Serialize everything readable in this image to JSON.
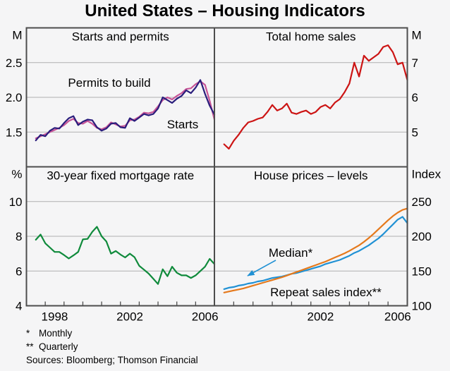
{
  "title": "United States – Housing Indicators",
  "footnotes": [
    {
      "marker": "*",
      "text": "Monthly"
    },
    {
      "marker": "**",
      "text": "Quarterly"
    },
    {
      "marker": "",
      "text": "Sources: Bloomberg; Thomson Financial"
    }
  ],
  "colors": {
    "background": "#f5f5f6",
    "frame": "#4d4d4d",
    "grid": "#b0b0b0",
    "text": "#000000",
    "starts": "#2a1d7c",
    "permits": "#c75497",
    "sales": "#cc1414",
    "mortgage": "#0f8a3b",
    "median": "#2091d4",
    "repeat_sales": "#e5791c"
  },
  "chart_data": {
    "type": "line",
    "layout_hint": "2x2 panel chart, shared frame, gridlines on, ticks on bottom axis only, unit labels at top of y axes",
    "x_quarterly": [
      1997.0,
      1997.25,
      1997.5,
      1997.75,
      1998.0,
      1998.25,
      1998.5,
      1998.75,
      1999.0,
      1999.25,
      1999.5,
      1999.75,
      2000.0,
      2000.25,
      2000.5,
      2000.75,
      2001.0,
      2001.25,
      2001.5,
      2001.75,
      2002.0,
      2002.25,
      2002.5,
      2002.75,
      2003.0,
      2003.25,
      2003.5,
      2003.75,
      2004.0,
      2004.25,
      2004.5,
      2004.75,
      2005.0,
      2005.25,
      2005.5,
      2005.75,
      2006.0,
      2006.25,
      2006.5
    ],
    "xlim": [
      1996.5,
      2006.5
    ],
    "xticks": [
      1997.5,
      1998.5,
      1999.5,
      2000.5,
      2001.5,
      2002.5,
      2003.5,
      2004.5,
      2005.5,
      2006.5
    ],
    "panels": [
      {
        "id": "starts-permits",
        "title": "Starts and permits",
        "unit": "M",
        "unit_side": "left",
        "ylim": [
          1.0,
          3.0
        ],
        "yticks": [
          {
            "v": 1.5,
            "label": "1.5"
          },
          {
            "v": 2.0,
            "label": "2.0"
          },
          {
            "v": 2.5,
            "label": "2.5"
          }
        ],
        "xlabels": [],
        "series": [
          {
            "id": "permits",
            "label": "Permits to build",
            "color": "#c75497",
            "values": [
              1.41,
              1.44,
              1.47,
              1.5,
              1.53,
              1.56,
              1.6,
              1.66,
              1.69,
              1.63,
              1.62,
              1.66,
              1.62,
              1.56,
              1.54,
              1.57,
              1.64,
              1.61,
              1.58,
              1.59,
              1.67,
              1.68,
              1.72,
              1.78,
              1.77,
              1.79,
              1.87,
              1.96,
              2.0,
              1.97,
              2.02,
              2.06,
              2.12,
              2.13,
              2.19,
              2.23,
              2.18,
              1.95,
              1.68
            ]
          },
          {
            "id": "starts",
            "label": "Starts",
            "color": "#2a1d7c",
            "values": [
              1.38,
              1.46,
              1.44,
              1.52,
              1.56,
              1.55,
              1.63,
              1.7,
              1.73,
              1.6,
              1.65,
              1.68,
              1.67,
              1.57,
              1.52,
              1.55,
              1.62,
              1.63,
              1.57,
              1.56,
              1.7,
              1.66,
              1.71,
              1.76,
              1.74,
              1.76,
              1.84,
              2.0,
              1.96,
              1.92,
              1.98,
              2.02,
              2.1,
              2.06,
              2.14,
              2.25,
              2.05,
              1.88,
              1.75
            ]
          }
        ]
      },
      {
        "id": "home-sales",
        "title": "Total home sales",
        "unit": "M",
        "unit_side": "right",
        "ylim": [
          4.0,
          8.0
        ],
        "yticks": [
          {
            "v": 5,
            "label": "5"
          },
          {
            "v": 6,
            "label": "6"
          },
          {
            "v": 7,
            "label": "7"
          }
        ],
        "xlabels": [],
        "series": [
          {
            "id": "sales",
            "label": "",
            "color": "#cc1414",
            "values": [
              4.65,
              4.52,
              4.75,
              4.92,
              5.12,
              5.28,
              5.32,
              5.38,
              5.42,
              5.58,
              5.78,
              5.62,
              5.68,
              5.82,
              5.56,
              5.52,
              5.58,
              5.62,
              5.52,
              5.58,
              5.72,
              5.78,
              5.68,
              5.85,
              5.95,
              6.15,
              6.4,
              7.0,
              6.6,
              7.2,
              7.05,
              7.15,
              7.25,
              7.45,
              7.5,
              7.3,
              6.95,
              7.0,
              6.5
            ]
          }
        ]
      },
      {
        "id": "mortgage-rate",
        "title": "30-year fixed mortgage rate",
        "unit": "%",
        "unit_side": "left",
        "ylim": [
          4.0,
          12.0
        ],
        "yticks": [
          {
            "v": 4,
            "label": "4",
            "edge": true
          },
          {
            "v": 6,
            "label": "6"
          },
          {
            "v": 8,
            "label": "8"
          },
          {
            "v": 10,
            "label": "10"
          }
        ],
        "xlabels": [
          1998,
          2002,
          2006
        ],
        "series": [
          {
            "id": "mortgage",
            "label": "",
            "color": "#0f8a3b",
            "values": [
              7.8,
              8.1,
              7.6,
              7.35,
              7.1,
              7.1,
              6.92,
              6.72,
              6.9,
              7.1,
              7.82,
              7.85,
              8.25,
              8.55,
              8.0,
              7.7,
              7.0,
              7.15,
              6.95,
              6.78,
              7.0,
              6.8,
              6.3,
              6.08,
              5.85,
              5.55,
              5.25,
              6.1,
              5.7,
              6.25,
              5.9,
              5.75,
              5.75,
              5.6,
              5.75,
              6.0,
              6.25,
              6.7,
              6.4
            ]
          }
        ]
      },
      {
        "id": "house-prices",
        "title": "House prices – levels",
        "unit": "Index",
        "unit_side": "right",
        "ylim": [
          100,
          300
        ],
        "yticks": [
          {
            "v": 100,
            "label": "100",
            "edge": true
          },
          {
            "v": 150,
            "label": "150"
          },
          {
            "v": 200,
            "label": "200"
          },
          {
            "v": 250,
            "label": "250"
          }
        ],
        "xlabels": [
          2002,
          2006
        ],
        "series": [
          {
            "id": "median",
            "label": "Median*",
            "color": "#2091d4",
            "values": [
              124,
              126,
              127,
              129,
              130,
              132,
              133,
              135,
              136,
              138,
              140,
              141,
              142,
              144,
              146,
              147,
              149,
              151,
              153,
              155,
              157,
              160,
              162,
              164,
              166,
              169,
              172,
              176,
              179,
              183,
              187,
              192,
              197,
              203,
              210,
              217,
              224,
              228,
              219
            ]
          },
          {
            "id": "repeat_sales",
            "label": "Repeat sales index**",
            "color": "#e5791c",
            "values": [
              119,
              120.5,
              122,
              123.5,
              125,
              127,
              129,
              131,
              133,
              135,
              137,
              139,
              141,
              143.5,
              146,
              148.5,
              151,
              153.5,
              156,
              158.5,
              161,
              163.5,
              166.5,
              169.5,
              172.5,
              175.5,
              179,
              183,
              187,
              192,
              197.5,
              203.5,
              210,
              216.5,
              223,
              229,
              234,
              238,
              240
            ]
          }
        ]
      }
    ]
  }
}
